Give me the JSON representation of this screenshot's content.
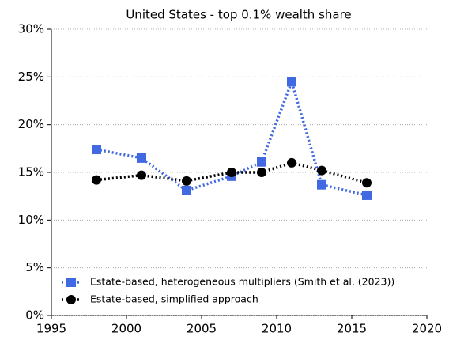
{
  "chart_data": {
    "type": "line",
    "title": "United States - top 0.1% wealth share",
    "x": [
      1998,
      2001,
      2004,
      2007,
      2009,
      2011,
      2013,
      2016
    ],
    "series": [
      {
        "name": "Estate-based, heterogeneous multipliers (Smith et al. (2023))",
        "color": "#4169e1",
        "marker": "square",
        "values": [
          17.4,
          16.5,
          13.1,
          14.6,
          16.1,
          24.5,
          13.7,
          12.6
        ]
      },
      {
        "name": "Estate-based, simplified approach",
        "color": "#000000",
        "marker": "circle",
        "values": [
          14.2,
          14.7,
          14.1,
          15.0,
          15.0,
          16.0,
          15.2,
          13.9
        ]
      }
    ],
    "xlim": [
      1995,
      2020
    ],
    "xticks": [
      1995,
      2000,
      2005,
      2010,
      2015,
      2020
    ],
    "ylim": [
      0,
      30
    ],
    "yticks": [
      {
        "value": 0,
        "label": "0%"
      },
      {
        "value": 5,
        "label": "5%"
      },
      {
        "value": 10,
        "label": "10%"
      },
      {
        "value": 15,
        "label": "15%"
      },
      {
        "value": 20,
        "label": "20%"
      },
      {
        "value": 25,
        "label": "25%"
      },
      {
        "value": 30,
        "label": "30%"
      }
    ],
    "grid": true,
    "legend": "lower left"
  }
}
